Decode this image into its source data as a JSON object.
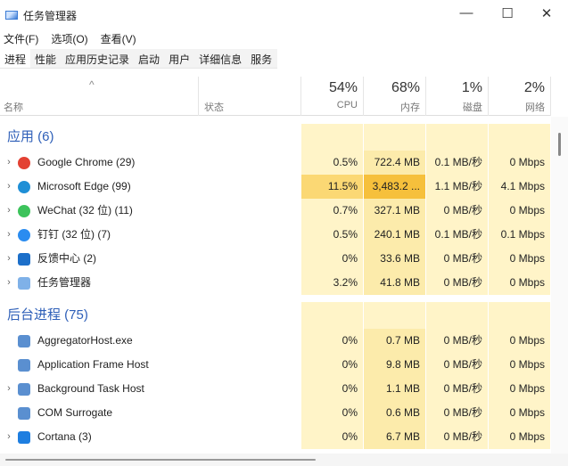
{
  "window": {
    "title": "任务管理器",
    "minimize": "—",
    "maximize": "☐",
    "close": "✕"
  },
  "menu": [
    "文件(F)",
    "选项(O)",
    "查看(V)"
  ],
  "tabs": [
    "进程",
    "性能",
    "应用历史记录",
    "启动",
    "用户",
    "详细信息",
    "服务"
  ],
  "active_tab": 0,
  "columns": {
    "sort_arrow": "^",
    "name": "名称",
    "status": "状态",
    "cpu": {
      "pct": "54%",
      "label": "CPU"
    },
    "mem": {
      "pct": "68%",
      "label": "内存"
    },
    "disk": {
      "pct": "1%",
      "label": "磁盘"
    },
    "net": {
      "pct": "2%",
      "label": "网络"
    }
  },
  "groups": [
    {
      "title": "应用 (6)",
      "rows": [
        {
          "name": "Google Chrome (29)",
          "expand": true,
          "icon": "chrome-icon",
          "color": "#e34133",
          "cpu": "0.5%",
          "mem": "722.4 MB",
          "disk": "0.1 MB/秒",
          "net": "0 Mbps"
        },
        {
          "name": "Microsoft Edge (99)",
          "expand": true,
          "icon": "edge-icon",
          "color": "#1f8fd6",
          "cpu": "11.5%",
          "mem": "3,483.2 ...",
          "disk": "1.1 MB/秒",
          "net": "4.1 Mbps"
        },
        {
          "name": "WeChat (32 位) (11)",
          "expand": true,
          "icon": "wechat-icon",
          "color": "#3cc35b",
          "cpu": "0.7%",
          "mem": "327.1 MB",
          "disk": "0 MB/秒",
          "net": "0 Mbps"
        },
        {
          "name": "钉钉 (32 位) (7)",
          "expand": true,
          "icon": "dingtalk-icon",
          "color": "#2a8cf0",
          "cpu": "0.5%",
          "mem": "240.1 MB",
          "disk": "0.1 MB/秒",
          "net": "0.1 Mbps"
        },
        {
          "name": "反馈中心 (2)",
          "expand": true,
          "icon": "feedback-hub-icon",
          "color": "#1c6fc9",
          "cpu": "0%",
          "mem": "33.6 MB",
          "disk": "0 MB/秒",
          "net": "0 Mbps"
        },
        {
          "name": "任务管理器",
          "expand": true,
          "icon": "task-manager-icon",
          "color": "#7fb1e8",
          "cpu": "3.2%",
          "mem": "41.8 MB",
          "disk": "0 MB/秒",
          "net": "0 Mbps"
        }
      ]
    },
    {
      "title": "后台进程 (75)",
      "rows": [
        {
          "name": "AggregatorHost.exe",
          "expand": false,
          "icon": "process-icon",
          "color": "#5a8fd0",
          "cpu": "0%",
          "mem": "0.7 MB",
          "disk": "0 MB/秒",
          "net": "0 Mbps"
        },
        {
          "name": "Application Frame Host",
          "expand": false,
          "icon": "process-icon",
          "color": "#5a8fd0",
          "cpu": "0%",
          "mem": "9.8 MB",
          "disk": "0 MB/秒",
          "net": "0 Mbps"
        },
        {
          "name": "Background Task Host",
          "expand": true,
          "icon": "process-icon",
          "color": "#5a8fd0",
          "cpu": "0%",
          "mem": "1.1 MB",
          "disk": "0 MB/秒",
          "net": "0 Mbps"
        },
        {
          "name": "COM Surrogate",
          "expand": false,
          "icon": "process-icon",
          "color": "#5a8fd0",
          "cpu": "0%",
          "mem": "0.6 MB",
          "disk": "0 MB/秒",
          "net": "0 Mbps"
        },
        {
          "name": "Cortana (3)",
          "expand": true,
          "icon": "cortana-icon",
          "color": "#1e7ee0",
          "cpu": "0%",
          "mem": "6.7 MB",
          "disk": "0 MB/秒",
          "net": "0 Mbps"
        }
      ]
    }
  ],
  "heat_colors": {
    "light": "#fff4c8",
    "medium": "#fcebab",
    "strong": "#fbd874",
    "peak": "#f6c03c"
  }
}
